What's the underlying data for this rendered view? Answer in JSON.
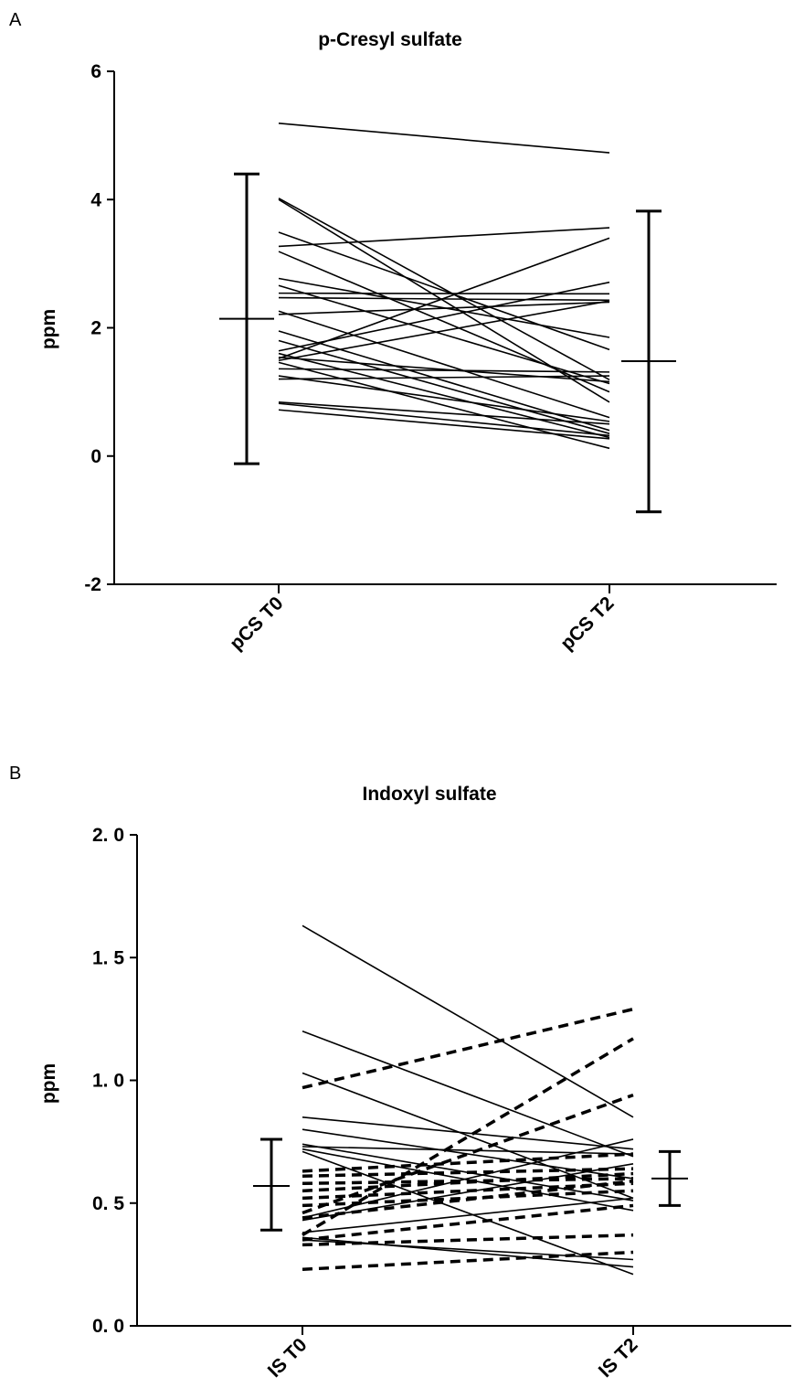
{
  "chart_data": [
    {
      "panel": "A",
      "type": "line",
      "title": "p-Cresyl sulfate",
      "ylabel": "ppm",
      "xlabel": "",
      "ylim": [
        -2,
        6
      ],
      "yticks": [
        {
          "value": 6,
          "label": "6"
        },
        {
          "value": 4,
          "label": "4"
        },
        {
          "value": 2,
          "label": "2"
        },
        {
          "value": 0,
          "label": "0"
        },
        {
          "value": -2,
          "label": "-2"
        }
      ],
      "categories": [
        "pCS T0",
        "pCS T2"
      ],
      "pairs": [
        {
          "values": [
            5.19,
            4.73
          ],
          "style": "solid"
        },
        {
          "values": [
            4.02,
            1.19
          ],
          "style": "solid"
        },
        {
          "values": [
            4.0,
            0.84
          ],
          "style": "solid"
        },
        {
          "values": [
            3.49,
            1.66
          ],
          "style": "solid"
        },
        {
          "values": [
            3.27,
            3.56
          ],
          "style": "solid"
        },
        {
          "values": [
            3.19,
            1.0
          ],
          "style": "solid"
        },
        {
          "values": [
            2.77,
            1.85
          ],
          "style": "solid"
        },
        {
          "values": [
            2.66,
            1.13
          ],
          "style": "solid"
        },
        {
          "values": [
            2.54,
            2.53
          ],
          "style": "solid"
        },
        {
          "values": [
            2.47,
            2.43
          ],
          "style": "solid"
        },
        {
          "values": [
            2.26,
            0.6
          ],
          "style": "solid"
        },
        {
          "values": [
            2.21,
            2.4
          ],
          "style": "solid"
        },
        {
          "values": [
            1.95,
            0.4
          ],
          "style": "solid"
        },
        {
          "values": [
            1.8,
            0.35
          ],
          "style": "solid"
        },
        {
          "values": [
            1.64,
            2.71
          ],
          "style": "solid"
        },
        {
          "values": [
            1.6,
            0.29
          ],
          "style": "solid"
        },
        {
          "values": [
            1.54,
            1.16
          ],
          "style": "solid"
        },
        {
          "values": [
            1.52,
            3.4
          ],
          "style": "solid"
        },
        {
          "values": [
            1.49,
            2.42
          ],
          "style": "solid"
        },
        {
          "values": [
            1.46,
            0.12
          ],
          "style": "solid"
        },
        {
          "values": [
            1.36,
            1.31
          ],
          "style": "solid"
        },
        {
          "values": [
            1.25,
            0.54
          ],
          "style": "solid"
        },
        {
          "values": [
            1.2,
            1.25
          ],
          "style": "solid"
        },
        {
          "values": [
            0.84,
            0.5
          ],
          "style": "solid"
        },
        {
          "values": [
            0.82,
            0.32
          ],
          "style": "solid"
        },
        {
          "values": [
            0.72,
            0.27
          ],
          "style": "solid"
        }
      ],
      "summary": [
        {
          "category": "pCS T0",
          "center": 2.14,
          "low": -0.12,
          "high": 4.4
        },
        {
          "category": "pCS T2",
          "center": 1.48,
          "low": -0.87,
          "high": 3.82
        }
      ],
      "grid": false,
      "legend": "none"
    },
    {
      "panel": "B",
      "type": "line",
      "title": "Indoxyl sulfate",
      "ylabel": "ppm",
      "xlabel": "",
      "ylim": [
        0,
        2
      ],
      "yticks": [
        {
          "value": 2.0,
          "label": "2. 0"
        },
        {
          "value": 1.5,
          "label": "1. 5"
        },
        {
          "value": 1.0,
          "label": "1. 0"
        },
        {
          "value": 0.5,
          "label": "0. 5"
        },
        {
          "value": 0.0,
          "label": "0. 0"
        }
      ],
      "categories": [
        "IS T0",
        "IS T2"
      ],
      "pairs": [
        {
          "values": [
            1.63,
            0.85
          ],
          "style": "solid"
        },
        {
          "values": [
            1.2,
            0.69
          ],
          "style": "solid"
        },
        {
          "values": [
            1.03,
            0.52
          ],
          "style": "solid"
        },
        {
          "values": [
            0.85,
            0.72
          ],
          "style": "solid"
        },
        {
          "values": [
            0.8,
            0.6
          ],
          "style": "solid"
        },
        {
          "values": [
            0.74,
            0.51
          ],
          "style": "solid"
        },
        {
          "values": [
            0.73,
            0.7
          ],
          "style": "solid"
        },
        {
          "values": [
            0.72,
            0.47
          ],
          "style": "solid"
        },
        {
          "values": [
            0.71,
            0.21
          ],
          "style": "solid"
        },
        {
          "values": [
            0.44,
            0.76
          ],
          "style": "solid"
        },
        {
          "values": [
            0.43,
            0.66
          ],
          "style": "solid"
        },
        {
          "values": [
            0.38,
            0.52
          ],
          "style": "solid"
        },
        {
          "values": [
            0.36,
            0.24
          ],
          "style": "solid"
        },
        {
          "values": [
            0.35,
            0.27
          ],
          "style": "solid"
        },
        {
          "values": [
            0.97,
            1.29
          ],
          "style": "dashed"
        },
        {
          "values": [
            0.63,
            0.7
          ],
          "style": "dashed"
        },
        {
          "values": [
            0.61,
            0.64
          ],
          "style": "dashed"
        },
        {
          "values": [
            0.58,
            0.6
          ],
          "style": "dashed"
        },
        {
          "values": [
            0.55,
            0.62
          ],
          "style": "dashed"
        },
        {
          "values": [
            0.52,
            0.58
          ],
          "style": "dashed"
        },
        {
          "values": [
            0.49,
            0.55
          ],
          "style": "dashed"
        },
        {
          "values": [
            0.46,
            0.94
          ],
          "style": "dashed"
        },
        {
          "values": [
            0.44,
            0.59
          ],
          "style": "dashed"
        },
        {
          "values": [
            0.37,
            1.17
          ],
          "style": "dashed"
        },
        {
          "values": [
            0.35,
            0.49
          ],
          "style": "dashed"
        },
        {
          "values": [
            0.33,
            0.37
          ],
          "style": "dashed"
        },
        {
          "values": [
            0.23,
            0.3
          ],
          "style": "dashed"
        }
      ],
      "summary": [
        {
          "category": "IS T0",
          "center": 0.57,
          "low": 0.39,
          "high": 0.76
        },
        {
          "category": "IS T2",
          "center": 0.6,
          "low": 0.49,
          "high": 0.71
        }
      ],
      "grid": false,
      "legend": "none"
    }
  ]
}
